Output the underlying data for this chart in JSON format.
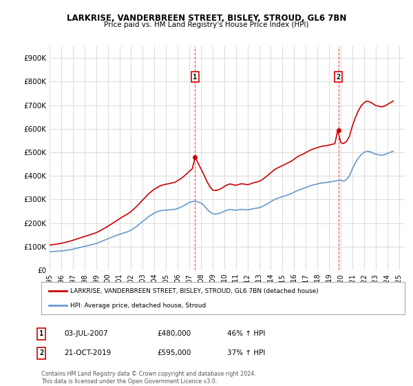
{
  "title": "LARKRISE, VANDERBREEN STREET, BISLEY, STROUD, GL6 7BN",
  "subtitle": "Price paid vs. HM Land Registry's House Price Index (HPI)",
  "ylabel_ticks": [
    "£0",
    "£100K",
    "£200K",
    "£300K",
    "£400K",
    "£500K",
    "£600K",
    "£700K",
    "£800K",
    "£900K"
  ],
  "ytick_values": [
    0,
    100000,
    200000,
    300000,
    400000,
    500000,
    600000,
    700000,
    800000,
    900000
  ],
  "ylim": [
    0,
    950000
  ],
  "xlim_start": 1995.0,
  "xlim_end": 2025.5,
  "xtick_years": [
    1995,
    1996,
    1997,
    1998,
    1999,
    2000,
    2001,
    2002,
    2003,
    2004,
    2005,
    2006,
    2007,
    2008,
    2009,
    2010,
    2011,
    2012,
    2013,
    2014,
    2015,
    2016,
    2017,
    2018,
    2019,
    2020,
    2021,
    2022,
    2023,
    2024,
    2025
  ],
  "background_color": "#ffffff",
  "plot_bg_color": "#ffffff",
  "grid_color": "#dddddd",
  "red_line_color": "#cc0000",
  "blue_line_color": "#6699cc",
  "dashed_line_color": "#ff4444",
  "marker1_x": 2007.5,
  "marker2_x": 2019.8,
  "marker1_label": "1",
  "marker2_label": "2",
  "marker1_price": 480000,
  "marker2_price": 595000,
  "legend_line1": "LARKRISE, VANDERBREEN STREET, BISLEY, STROUD, GL6 7BN (detached house)",
  "legend_line2": "HPI: Average price, detached house, Stroud",
  "table_row1": [
    "1",
    "03-JUL-2007",
    "£480,000",
    "46% ↑ HPI"
  ],
  "table_row2": [
    "2",
    "21-OCT-2019",
    "£595,000",
    "37% ↑ HPI"
  ],
  "footnote1": "Contains HM Land Registry data © Crown copyright and database right 2024.",
  "footnote2": "This data is licensed under the Open Government Licence v3.0.",
  "hpi_data_x": [
    1995.0,
    1995.25,
    1995.5,
    1995.75,
    1996.0,
    1996.25,
    1996.5,
    1996.75,
    1997.0,
    1997.25,
    1997.5,
    1997.75,
    1998.0,
    1998.25,
    1998.5,
    1998.75,
    1999.0,
    1999.25,
    1999.5,
    1999.75,
    2000.0,
    2000.25,
    2000.5,
    2000.75,
    2001.0,
    2001.25,
    2001.5,
    2001.75,
    2002.0,
    2002.25,
    2002.5,
    2002.75,
    2003.0,
    2003.25,
    2003.5,
    2003.75,
    2004.0,
    2004.25,
    2004.5,
    2004.75,
    2005.0,
    2005.25,
    2005.5,
    2005.75,
    2006.0,
    2006.25,
    2006.5,
    2006.75,
    2007.0,
    2007.25,
    2007.5,
    2007.75,
    2008.0,
    2008.25,
    2008.5,
    2008.75,
    2009.0,
    2009.25,
    2009.5,
    2009.75,
    2010.0,
    2010.25,
    2010.5,
    2010.75,
    2011.0,
    2011.25,
    2011.5,
    2011.75,
    2012.0,
    2012.25,
    2012.5,
    2012.75,
    2013.0,
    2013.25,
    2013.5,
    2013.75,
    2014.0,
    2014.25,
    2014.5,
    2014.75,
    2015.0,
    2015.25,
    2015.5,
    2015.75,
    2016.0,
    2016.25,
    2016.5,
    2016.75,
    2017.0,
    2017.25,
    2017.5,
    2017.75,
    2018.0,
    2018.25,
    2018.5,
    2018.75,
    2019.0,
    2019.25,
    2019.5,
    2019.75,
    2020.0,
    2020.25,
    2020.5,
    2020.75,
    2021.0,
    2021.25,
    2021.5,
    2021.75,
    2022.0,
    2022.25,
    2022.5,
    2022.75,
    2023.0,
    2023.25,
    2023.5,
    2023.75,
    2024.0,
    2024.25,
    2024.5
  ],
  "hpi_data_y": [
    78000,
    79000,
    80000,
    81000,
    82000,
    83000,
    85000,
    87000,
    89000,
    92000,
    95000,
    98000,
    101000,
    104000,
    107000,
    110000,
    113000,
    118000,
    123000,
    128000,
    133000,
    138000,
    143000,
    148000,
    152000,
    156000,
    160000,
    164000,
    170000,
    178000,
    187000,
    197000,
    207000,
    217000,
    227000,
    235000,
    243000,
    248000,
    252000,
    254000,
    255000,
    256000,
    257000,
    258000,
    262000,
    267000,
    273000,
    280000,
    287000,
    291000,
    293000,
    290000,
    285000,
    275000,
    260000,
    248000,
    240000,
    238000,
    240000,
    244000,
    250000,
    255000,
    258000,
    256000,
    254000,
    257000,
    258000,
    257000,
    256000,
    258000,
    261000,
    263000,
    265000,
    270000,
    276000,
    283000,
    291000,
    298000,
    304000,
    308000,
    312000,
    316000,
    320000,
    325000,
    331000,
    337000,
    342000,
    346000,
    351000,
    356000,
    360000,
    363000,
    366000,
    369000,
    371000,
    372000,
    374000,
    376000,
    378000,
    380000,
    382000,
    378000,
    385000,
    400000,
    430000,
    455000,
    475000,
    490000,
    500000,
    505000,
    503000,
    498000,
    492000,
    490000,
    488000,
    490000,
    495000,
    500000,
    505000
  ],
  "red_data_x": [
    1995.0,
    1995.25,
    1995.5,
    1995.75,
    1996.0,
    1996.25,
    1996.5,
    1996.75,
    1997.0,
    1997.25,
    1997.5,
    1997.75,
    1998.0,
    1998.25,
    1998.5,
    1998.75,
    1999.0,
    1999.25,
    1999.5,
    1999.75,
    2000.0,
    2000.25,
    2000.5,
    2000.75,
    2001.0,
    2001.25,
    2001.5,
    2001.75,
    2002.0,
    2002.25,
    2002.5,
    2002.75,
    2003.0,
    2003.25,
    2003.5,
    2003.75,
    2004.0,
    2004.25,
    2004.5,
    2004.75,
    2005.0,
    2005.25,
    2005.5,
    2005.75,
    2006.0,
    2006.25,
    2006.5,
    2006.75,
    2007.0,
    2007.25,
    2007.5,
    2007.75,
    2008.0,
    2008.25,
    2008.5,
    2008.75,
    2009.0,
    2009.25,
    2009.5,
    2009.75,
    2010.0,
    2010.25,
    2010.5,
    2010.75,
    2011.0,
    2011.25,
    2011.5,
    2011.75,
    2012.0,
    2012.25,
    2012.5,
    2012.75,
    2013.0,
    2013.25,
    2013.5,
    2013.75,
    2014.0,
    2014.25,
    2014.5,
    2014.75,
    2015.0,
    2015.25,
    2015.5,
    2015.75,
    2016.0,
    2016.25,
    2016.5,
    2016.75,
    2017.0,
    2017.25,
    2017.5,
    2017.75,
    2018.0,
    2018.25,
    2018.5,
    2018.75,
    2019.0,
    2019.25,
    2019.5,
    2019.75,
    2020.0,
    2020.25,
    2020.5,
    2020.75,
    2021.0,
    2021.25,
    2021.5,
    2021.75,
    2022.0,
    2022.25,
    2022.5,
    2022.75,
    2023.0,
    2023.25,
    2023.5,
    2023.75,
    2024.0,
    2024.25,
    2024.5
  ],
  "red_data_y": [
    107000,
    108000,
    110000,
    112000,
    114000,
    117000,
    120000,
    123000,
    127000,
    131000,
    135000,
    139000,
    143000,
    147000,
    151000,
    155000,
    159000,
    165000,
    172000,
    179000,
    186000,
    194000,
    202000,
    210000,
    218000,
    226000,
    233000,
    240000,
    249000,
    260000,
    272000,
    285000,
    298000,
    311000,
    324000,
    334000,
    344000,
    351000,
    358000,
    362000,
    365000,
    367000,
    370000,
    373000,
    380000,
    388000,
    397000,
    408000,
    420000,
    430000,
    480000,
    455000,
    430000,
    405000,
    378000,
    356000,
    340000,
    338000,
    341000,
    347000,
    355000,
    362000,
    366000,
    363000,
    360000,
    364000,
    367000,
    365000,
    363000,
    366000,
    371000,
    374000,
    377000,
    384000,
    393000,
    403000,
    414000,
    424000,
    432000,
    438000,
    444000,
    450000,
    456000,
    462000,
    471000,
    480000,
    487000,
    492000,
    499000,
    506000,
    512000,
    516000,
    520000,
    524000,
    527000,
    528000,
    531000,
    534000,
    537000,
    595000,
    542000,
    537000,
    547000,
    568000,
    612000,
    646000,
    675000,
    697000,
    710000,
    718000,
    714000,
    707000,
    699000,
    696000,
    693000,
    696000,
    703000,
    710000,
    718000
  ]
}
